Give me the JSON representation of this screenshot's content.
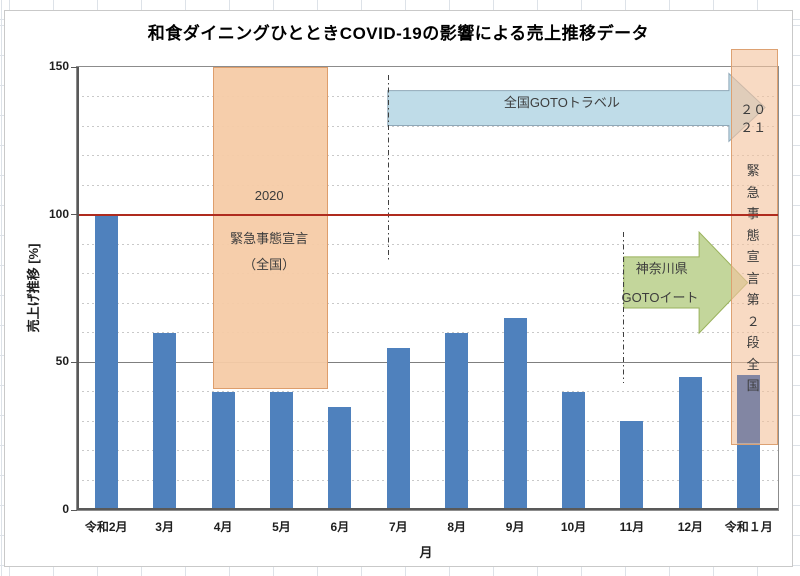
{
  "chart_data": {
    "type": "bar",
    "title": "和食ダイニングひとときCOVID-19の影響による売上推移データ",
    "categories": [
      "令和2月",
      "3月",
      "4月",
      "5月",
      "6月",
      "7月",
      "8月",
      "9月",
      "10月",
      "11月",
      "12月",
      "令和１月"
    ],
    "values": [
      100,
      60,
      40,
      40,
      35,
      55,
      60,
      65,
      40,
      30,
      45,
      45
    ],
    "xlabel": "月",
    "ylabel": "売上げ推移 [%]",
    "ylim": [
      0,
      150
    ],
    "yticks": [
      0,
      50,
      100,
      150
    ],
    "minor_grid_step": 10,
    "grid": "major-solid-gray, minor-dashed-light",
    "legend": "none",
    "bar_color": "#4f81bd",
    "reference_line": {
      "value": 100,
      "color": "#af2b1e"
    },
    "annotations": {
      "rects": [
        {
          "name": "emergency-declaration-2020",
          "cat_from": 1.82,
          "cat_to": 3.76,
          "v_from": 41.5,
          "v_to": 150,
          "fill": "rgba(246,203,166,0.95)",
          "border": "#de9e6c",
          "labels": [
            {
              "text": "2020",
              "v": 106.7
            },
            {
              "text": "緊急事態宣言",
              "v": 92.1
            },
            {
              "text": "（全国）",
              "v": 83.3
            }
          ]
        },
        {
          "name": "emergency-declaration-2021",
          "cat_from": 10.69,
          "cat_to": 11.46,
          "v_from": 22.7,
          "v_to": 156.1,
          "fill": "rgba(243,196,158,0.62)",
          "border": "rgba(219,158,110,0.95)",
          "labels": [
            {
              "text": "２０",
              "v": 135.8
            },
            {
              "text": "２１",
              "v": 129.7
            }
          ],
          "vertical_text": "緊急事態宣言第２段全国",
          "vertical_text_v_top": 118.5
        }
      ],
      "arrows": [
        {
          "name": "goto-travel",
          "label_lines": [
            {
              "text": "全国GOTOトラベル",
              "cat": 7.8,
              "v": 138.1
            }
          ],
          "cat_body_from": 4.82,
          "cat_body_to": 10.66,
          "cat_tip": 11.28,
          "v_body_top": 142.0,
          "v_body_bottom": 130.2,
          "v_head_top": 147.8,
          "v_head_bottom": 124.8,
          "fill": "#bfdce8",
          "stroke": "#8fa8b8"
        },
        {
          "name": "goto-eat",
          "label_lines": [
            {
              "text": "神奈川県",
              "cat": 9.51,
              "v": 81.9
            },
            {
              "text": "GOTOイート",
              "cat": 9.48,
              "v": 72.1
            }
          ],
          "cat_body_from": 8.86,
          "cat_body_to": 10.15,
          "cat_tip": 10.98,
          "v_body_top": 85.7,
          "v_body_bottom": 68.4,
          "v_head_top": 94.1,
          "v_head_bottom": 59.9,
          "fill": "#c3d69b",
          "stroke": "#9ab25c"
        }
      ],
      "dashdot_lines": [
        {
          "name": "goto-travel-start-marker",
          "cat": 4.82,
          "v_from": 84.0,
          "v_to": 147.3
        },
        {
          "name": "goto-eat-start-marker",
          "cat": 8.85,
          "v_from": 43.0,
          "v_to": 94.1
        }
      ],
      "bar_overlay": {
        "name": "jan-bar-shaded-segment",
        "cat": 11,
        "v_from": 22.7,
        "v_to": 45.7,
        "color": "#8286a3"
      }
    }
  }
}
